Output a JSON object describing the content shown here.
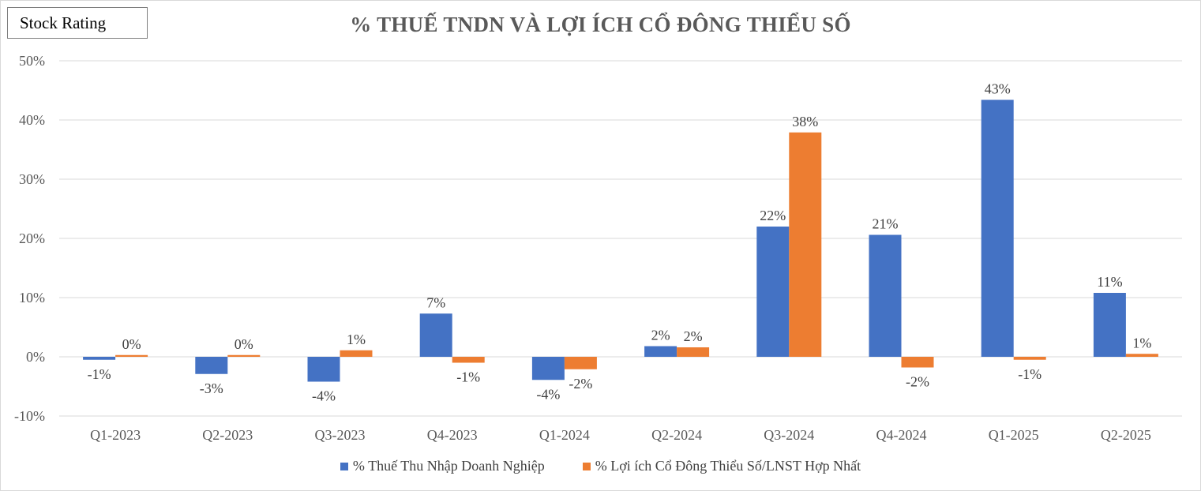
{
  "stock_rating_label": "Stock Rating",
  "chart_data": {
    "type": "bar",
    "title": "% THUẾ TNDN VÀ LỢI ÍCH CỔ ĐÔNG THIỂU SỐ",
    "xlabel": "",
    "ylabel": "",
    "categories": [
      "Q1-2023",
      "Q2-2023",
      "Q3-2023",
      "Q4-2023",
      "Q1-2024",
      "Q2-2024",
      "Q3-2024",
      "Q4-2024",
      "Q1-2025",
      "Q2-2025"
    ],
    "series": [
      {
        "name": "% Thuế Thu Nhập Doanh Nghiệp",
        "color": "#4472c4",
        "values": [
          -0.5,
          -2.9,
          -4.2,
          7.3,
          -3.9,
          1.8,
          22.0,
          20.6,
          43.4,
          10.8
        ],
        "labels": [
          "-1%",
          "-3%",
          "-4%",
          "7%",
          "-4%",
          "2%",
          "22%",
          "21%",
          "43%",
          "11%"
        ]
      },
      {
        "name": "% Lợi ích Cổ Đông Thiểu Số/LNST Hợp Nhất",
        "color": "#ed7d31",
        "values": [
          0.3,
          0.3,
          1.1,
          -1.0,
          -2.1,
          1.6,
          37.9,
          -1.8,
          -0.5,
          0.5
        ],
        "labels": [
          "0%",
          "0%",
          "1%",
          "-1%",
          "-2%",
          "2%",
          "38%",
          "-2%",
          "-1%",
          "1%"
        ]
      }
    ],
    "ylim": [
      -10,
      50
    ],
    "yticks": [
      -10,
      0,
      10,
      20,
      30,
      40,
      50
    ],
    "ytick_labels": [
      "-10%",
      "0%",
      "10%",
      "20%",
      "30%",
      "40%",
      "50%"
    ],
    "grid": true,
    "legend_position": "bottom"
  }
}
